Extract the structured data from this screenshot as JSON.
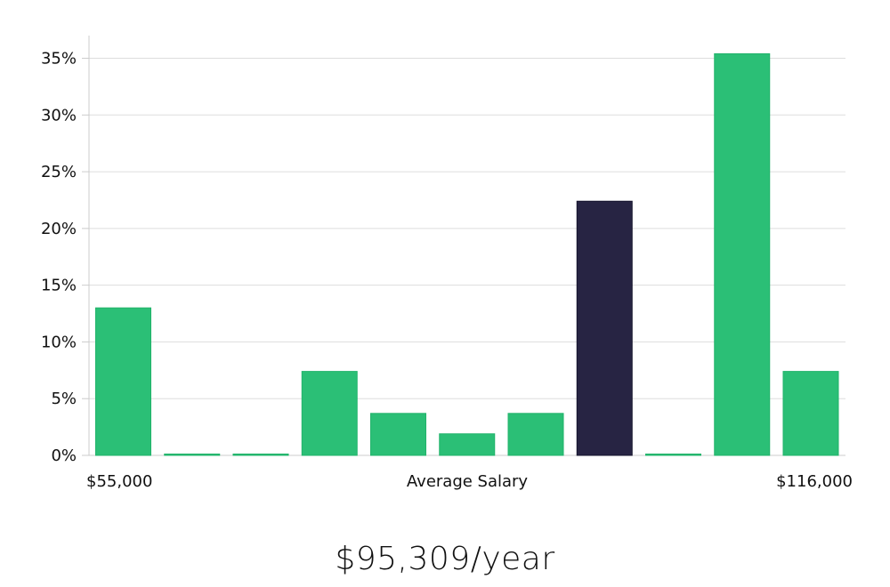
{
  "chart_data": {
    "type": "bar",
    "bins": 11,
    "values": [
      13,
      0,
      0,
      7.4,
      3.7,
      1.9,
      3.7,
      22.4,
      0,
      35.4,
      7.4
    ],
    "highlight_index": 7,
    "ylim": [
      0,
      37
    ],
    "yticks": [
      0,
      5,
      10,
      15,
      20,
      25,
      30,
      35
    ],
    "ytick_suffix": "%",
    "x_min_label": "$55,000",
    "x_max_label": "$116,000",
    "xlabel": "Average Salary",
    "grid": true,
    "colors": {
      "bar": "#2bbf76",
      "highlight": "#272443",
      "grid": "#dddddd",
      "axis": "#cccccc"
    }
  },
  "salary_text": "$95,309/year"
}
